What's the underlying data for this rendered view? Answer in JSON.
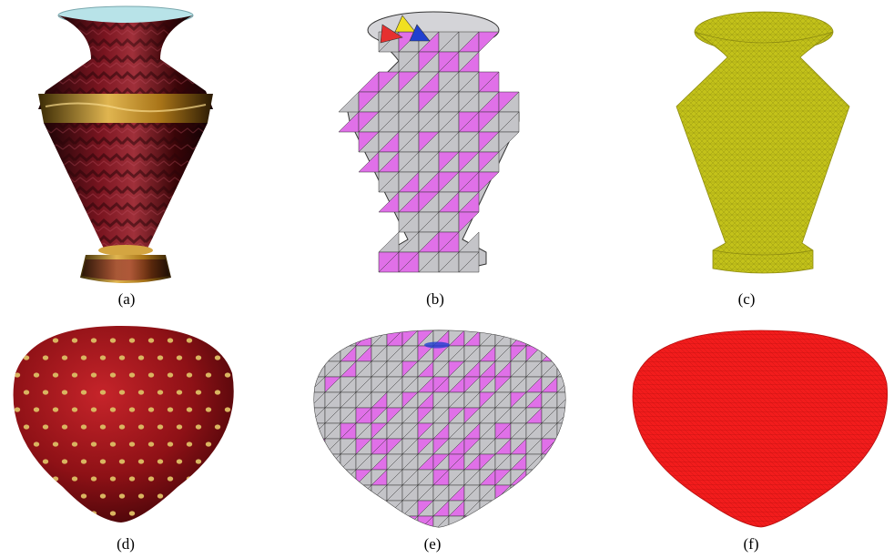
{
  "figure": {
    "panels": [
      {
        "id": "a",
        "caption": "(a)",
        "subject": "vase",
        "rendering": "textured"
      },
      {
        "id": "b",
        "caption": "(b)",
        "subject": "vase",
        "rendering": "coarse-mesh"
      },
      {
        "id": "c",
        "caption": "(c)",
        "subject": "vase",
        "rendering": "fine-mesh"
      },
      {
        "id": "d",
        "caption": "(d)",
        "subject": "strawberry",
        "rendering": "textured"
      },
      {
        "id": "e",
        "caption": "(e)",
        "subject": "strawberry",
        "rendering": "coarse-mesh"
      },
      {
        "id": "f",
        "caption": "(f)",
        "subject": "strawberry",
        "rendering": "fine-mesh"
      }
    ],
    "colors": {
      "mesh_gray": "#c4c4c8",
      "mesh_magenta": "#e070e8",
      "mesh_edge": "#333333",
      "vase_olive": "#c3c21a",
      "strawberry_red": "#f21c1c",
      "strawberry_seed": "#d9b560",
      "vase_wood_dark": "#5a0d12",
      "vase_gold": "#d4a541",
      "vase_rim_light": "#b8e3e8"
    }
  }
}
